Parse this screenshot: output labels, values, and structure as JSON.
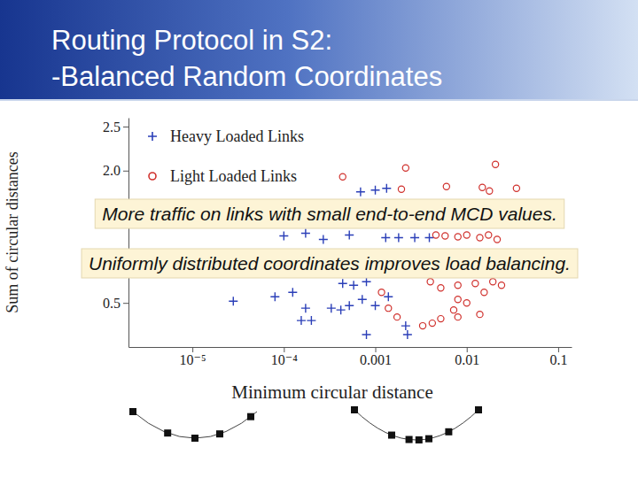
{
  "slide": {
    "title": [
      "Routing Protocol in S2:",
      "-Balanced Random Coordinates"
    ]
  },
  "chart_data": {
    "type": "scatter",
    "annotations": [
      "More traffic on links with small end-to-end MCD values.",
      "Uniformly distributed coordinates improves load balancing."
    ],
    "x_label": "Minimum circular distance",
    "y_label": "Sum of circular distances",
    "log": "x",
    "xlim": [
      2e-06,
      0.14
    ],
    "xticks": [
      {
        "value": 1e-05,
        "label": "10⁻⁵"
      },
      {
        "value": 0.0001,
        "label": "10⁻⁴"
      },
      0.001,
      0.01,
      0.1
    ],
    "ylim": [
      0,
      2.6
    ],
    "yticks": [
      0.5,
      {
        "value": 2,
        "label": "2.0"
      },
      2.5
    ],
    "grid": false,
    "legend": "upper left",
    "series": [
      {
        "name": "Heavy Loaded Links",
        "color": "#2b3fb8",
        "marker": "plus",
        "x": [
          0.00069,
          0.001,
          0.00133,
          0.0001,
          0.000173,
          0.00027,
          0.00052,
          0.0013,
          0.0018,
          0.0027,
          0.0039,
          2.8e-05,
          8e-05,
          0.000125,
          0.00044,
          0.00058,
          0.0008,
          0.00072,
          0.00139,
          0.00033,
          0.00042,
          0.00052,
          0.000173,
          0.000155,
          0.0002,
          0.0008,
          0.00215,
          0.00225,
          0.001
        ],
        "values": [
          1.76,
          1.78,
          1.8,
          1.26,
          1.29,
          1.22,
          1.27,
          1.24,
          1.24,
          1.24,
          1.24,
          0.52,
          0.57,
          0.62,
          0.72,
          0.7,
          0.74,
          0.54,
          0.57,
          0.44,
          0.42,
          0.47,
          0.44,
          0.3,
          0.3,
          0.14,
          0.24,
          0.14,
          0.47
        ]
      },
      {
        "name": "Light Loaded Links",
        "color": "#d0312d",
        "marker": "circle",
        "x": [
          0.00044,
          0.00215,
          0.00193,
          0.006,
          0.0148,
          0.0177,
          0.035,
          0.0206,
          0.0046,
          0.0058,
          0.008,
          0.01,
          0.0139,
          0.0173,
          0.0215,
          0.00117,
          0.004,
          0.0052,
          0.008,
          0.0124,
          0.0193,
          0.024,
          0.0155,
          0.008,
          0.01,
          0.0072,
          0.008,
          0.0139,
          0.0052,
          0.0042,
          0.0033,
          0.00139,
          0.00173
        ],
        "values": [
          1.93,
          2.03,
          1.79,
          1.82,
          1.81,
          1.77,
          1.8,
          2.07,
          1.27,
          1.26,
          1.25,
          1.27,
          1.24,
          1.27,
          1.22,
          0.62,
          0.74,
          0.67,
          0.7,
          0.72,
          0.74,
          0.7,
          0.62,
          0.54,
          0.5,
          0.42,
          0.34,
          0.37,
          0.32,
          0.27,
          0.24,
          0.44,
          0.34
        ]
      }
    ]
  }
}
